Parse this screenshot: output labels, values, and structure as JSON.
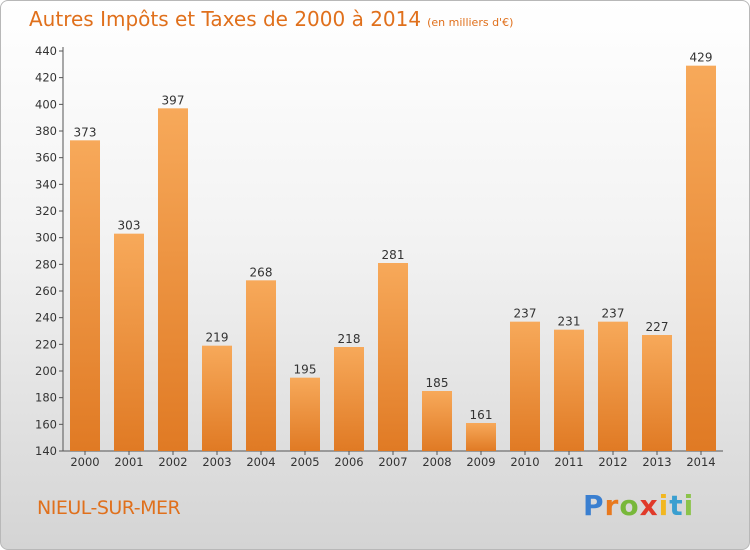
{
  "header": {
    "title": "Autres Impôts et Taxes de 2000 à 2014",
    "subtitle": "(en milliers d'€)"
  },
  "footer": {
    "commune": "NIEUL-SUR-MER",
    "logo_letters": [
      "P",
      "r",
      "o",
      "x",
      "i",
      "t",
      "i"
    ],
    "logo_colors": [
      "#3a7fd0",
      "#e8791e",
      "#78b83a",
      "#e03a2a",
      "#f2b720",
      "#3a9fd0",
      "#8bc34a"
    ]
  },
  "colors": {
    "bar_light": "#f7a95a",
    "bar_dark": "#e07a24",
    "text": "#333333",
    "accent": "#e0701c"
  },
  "chart_data": {
    "type": "bar",
    "categories": [
      "2000",
      "2001",
      "2002",
      "2003",
      "2004",
      "2005",
      "2006",
      "2007",
      "2008",
      "2009",
      "2010",
      "2011",
      "2012",
      "2013",
      "2014"
    ],
    "values": [
      373,
      303,
      397,
      219,
      268,
      195,
      218,
      281,
      185,
      161,
      237,
      231,
      237,
      227,
      429
    ],
    "title": "Autres Impôts et Taxes de 2000 à 2014",
    "subtitle": "(en milliers d'€)",
    "ylim": [
      140,
      440
    ],
    "yticks": [
      140,
      160,
      180,
      200,
      220,
      240,
      260,
      280,
      300,
      320,
      340,
      360,
      380,
      400,
      420,
      440
    ],
    "grid": false,
    "legend": "none"
  }
}
